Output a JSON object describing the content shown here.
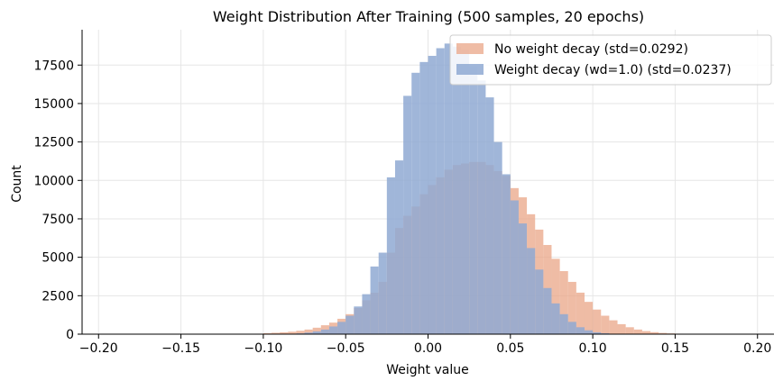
{
  "chart_data": {
    "type": "bar",
    "title": "Weight Distribution After Training  (500 samples, 20 epochs)",
    "xlabel": "Weight value",
    "ylabel": "Count",
    "xlim": [
      -0.21,
      0.21
    ],
    "ylim": [
      0,
      19800
    ],
    "xticks": [
      -0.2,
      -0.15,
      -0.1,
      -0.05,
      0.0,
      0.05,
      0.1,
      0.15,
      0.2
    ],
    "xtick_labels": [
      "−0.20",
      "−0.15",
      "−0.10",
      "−0.05",
      "0.00",
      "0.05",
      "0.10",
      "0.15",
      "0.20"
    ],
    "yticks": [
      0,
      2500,
      5000,
      7500,
      10000,
      12500,
      15000,
      17500
    ],
    "ytick_labels": [
      "0",
      "2500",
      "5000",
      "7500",
      "10000",
      "12500",
      "15000",
      "17500"
    ],
    "grid": true,
    "legend_position": "top-right",
    "bin_width": 0.005,
    "series": [
      {
        "name": "No weight decay  (std=0.0292)",
        "color": "#e9a587",
        "opacity": 0.75,
        "bins": [
          [
            -0.105,
            30
          ],
          [
            -0.1,
            60
          ],
          [
            -0.095,
            90
          ],
          [
            -0.09,
            120
          ],
          [
            -0.085,
            160
          ],
          [
            -0.08,
            220
          ],
          [
            -0.075,
            300
          ],
          [
            -0.07,
            420
          ],
          [
            -0.065,
            580
          ],
          [
            -0.06,
            750
          ],
          [
            -0.055,
            1000
          ],
          [
            -0.05,
            1300
          ],
          [
            -0.045,
            1700
          ],
          [
            -0.04,
            2200
          ],
          [
            -0.035,
            2700
          ],
          [
            -0.03,
            3400
          ],
          [
            -0.025,
            5300
          ],
          [
            -0.02,
            6900
          ],
          [
            -0.015,
            7700
          ],
          [
            -0.01,
            8300
          ],
          [
            -0.005,
            9100
          ],
          [
            0.0,
            9700
          ],
          [
            0.005,
            10200
          ],
          [
            0.01,
            10700
          ],
          [
            0.015,
            11000
          ],
          [
            0.02,
            11100
          ],
          [
            0.025,
            11200
          ],
          [
            0.03,
            11200
          ],
          [
            0.035,
            11000
          ],
          [
            0.04,
            10600
          ],
          [
            0.045,
            10300
          ],
          [
            0.05,
            9500
          ],
          [
            0.055,
            8900
          ],
          [
            0.06,
            7800
          ],
          [
            0.065,
            6800
          ],
          [
            0.07,
            5800
          ],
          [
            0.075,
            4900
          ],
          [
            0.08,
            4100
          ],
          [
            0.085,
            3400
          ],
          [
            0.09,
            2700
          ],
          [
            0.095,
            2100
          ],
          [
            0.1,
            1600
          ],
          [
            0.105,
            1200
          ],
          [
            0.11,
            900
          ],
          [
            0.115,
            650
          ],
          [
            0.12,
            450
          ],
          [
            0.125,
            300
          ],
          [
            0.13,
            200
          ],
          [
            0.135,
            130
          ],
          [
            0.14,
            80
          ],
          [
            0.145,
            50
          ],
          [
            0.15,
            30
          ]
        ]
      },
      {
        "name": "Weight decay  (wd=1.0)  (std=0.0237)",
        "color": "#8fa9d2",
        "opacity": 0.85,
        "bins": [
          [
            -0.08,
            50
          ],
          [
            -0.075,
            100
          ],
          [
            -0.07,
            180
          ],
          [
            -0.065,
            300
          ],
          [
            -0.06,
            500
          ],
          [
            -0.055,
            800
          ],
          [
            -0.05,
            1200
          ],
          [
            -0.045,
            1800
          ],
          [
            -0.04,
            2600
          ],
          [
            -0.035,
            4400
          ],
          [
            -0.03,
            5300
          ],
          [
            -0.025,
            10200
          ],
          [
            -0.02,
            11300
          ],
          [
            -0.015,
            15500
          ],
          [
            -0.01,
            17000
          ],
          [
            -0.005,
            17700
          ],
          [
            0.0,
            18100
          ],
          [
            0.005,
            18600
          ],
          [
            0.01,
            18900
          ],
          [
            0.015,
            18700
          ],
          [
            0.02,
            18500
          ],
          [
            0.025,
            17400
          ],
          [
            0.03,
            16500
          ],
          [
            0.035,
            15400
          ],
          [
            0.04,
            12500
          ],
          [
            0.045,
            10400
          ],
          [
            0.05,
            8700
          ],
          [
            0.055,
            7200
          ],
          [
            0.06,
            5600
          ],
          [
            0.065,
            4200
          ],
          [
            0.07,
            3000
          ],
          [
            0.075,
            2000
          ],
          [
            0.08,
            1300
          ],
          [
            0.085,
            800
          ],
          [
            0.09,
            450
          ],
          [
            0.095,
            250
          ],
          [
            0.1,
            120
          ],
          [
            0.105,
            60
          ]
        ]
      }
    ]
  }
}
